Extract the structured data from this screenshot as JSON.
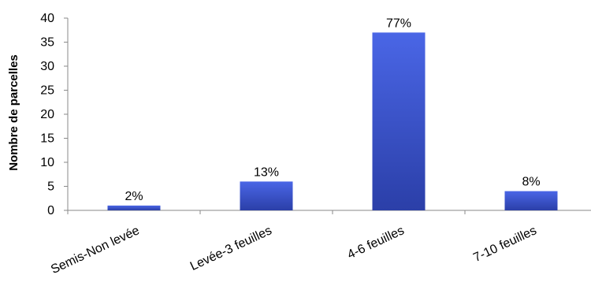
{
  "chart_data": {
    "type": "bar",
    "categories": [
      "Semis-Non levée",
      "Levée-3 feuilles",
      "4-6 feuilles",
      "7-10 feuilles"
    ],
    "values": [
      1,
      6,
      37,
      4
    ],
    "data_labels": [
      "2%",
      "13%",
      "77%",
      "8%"
    ],
    "title": "",
    "xlabel": "",
    "ylabel": "Nombre de parcelles",
    "ylim": [
      0,
      40
    ],
    "yticks": [
      0,
      5,
      10,
      15,
      20,
      25,
      30,
      35,
      40
    ],
    "grid": false,
    "legend": "none",
    "bar_color": "#3b56d9",
    "bar_color_dark": "#2a3fa6"
  }
}
